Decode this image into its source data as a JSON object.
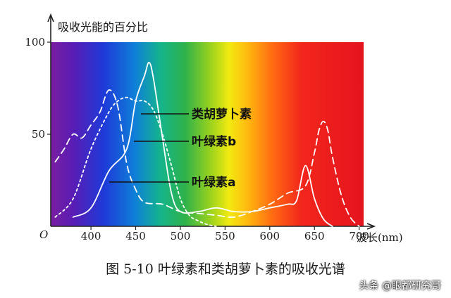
{
  "chart_data": {
    "type": "line",
    "ylabel": "吸收光能的百分比",
    "xlabel": "波长(nm)",
    "origin_label": "O",
    "xlim": [
      355,
      705
    ],
    "ylim": [
      0,
      100
    ],
    "x_ticks": [
      {
        "value": 400,
        "label": "400"
      },
      {
        "value": 450,
        "label": "450"
      },
      {
        "value": 500,
        "label": "500"
      },
      {
        "value": 550,
        "label": "550"
      },
      {
        "value": 600,
        "label": "600"
      },
      {
        "value": 650,
        "label": "650"
      },
      {
        "value": 700,
        "label": "700"
      }
    ],
    "y_ticks": [
      {
        "value": 50,
        "label": "50"
      },
      {
        "value": 100,
        "label": "100"
      }
    ],
    "background": "visible spectrum gradient (violet to red)",
    "series": [
      {
        "name": "类胡萝卜素",
        "style": "dotted",
        "color": "#ffffff",
        "x": [
          360,
          380,
          400,
          420,
          430,
          440,
          450,
          460,
          470,
          480,
          490,
          500,
          510,
          520,
          530,
          540
        ],
        "y": [
          5,
          15,
          42,
          62,
          68,
          70,
          68,
          68,
          63,
          50,
          33,
          15,
          6,
          3,
          1,
          0
        ]
      },
      {
        "name": "叶绿素b",
        "style": "solid",
        "color": "#ffffff",
        "x": [
          380,
          400,
          420,
          440,
          450,
          460,
          465,
          470,
          480,
          490,
          500,
          520,
          540,
          560,
          580,
          600,
          620,
          630,
          640,
          650,
          660,
          670
        ],
        "y": [
          5,
          10,
          30,
          42,
          68,
          82,
          89,
          80,
          48,
          18,
          8,
          8,
          10,
          8,
          8,
          10,
          12,
          14,
          33,
          15,
          4,
          0
        ]
      },
      {
        "name": "叶绿素a",
        "style": "dashed",
        "color": "#ffffff",
        "x": [
          360,
          370,
          380,
          390,
          400,
          410,
          420,
          430,
          440,
          450,
          460,
          480,
          500,
          520,
          540,
          560,
          580,
          600,
          620,
          640,
          650,
          655,
          660,
          665,
          670,
          680,
          690,
          700
        ],
        "y": [
          35,
          42,
          50,
          48,
          55,
          62,
          74,
          65,
          34,
          20,
          13,
          12,
          8,
          7,
          6,
          5,
          8,
          12,
          18,
          22,
          40,
          52,
          57,
          52,
          38,
          17,
          5,
          0
        ]
      }
    ],
    "annotations": [
      {
        "series": 0,
        "text": "类胡萝卜素"
      },
      {
        "series": 1,
        "text": "叶绿素b"
      },
      {
        "series": 2,
        "text": "叶绿素a"
      }
    ]
  },
  "caption": "图 5-10  叶绿素和类胡萝卜素的吸收光谱",
  "watermark": "头条 @眼都研究哥"
}
